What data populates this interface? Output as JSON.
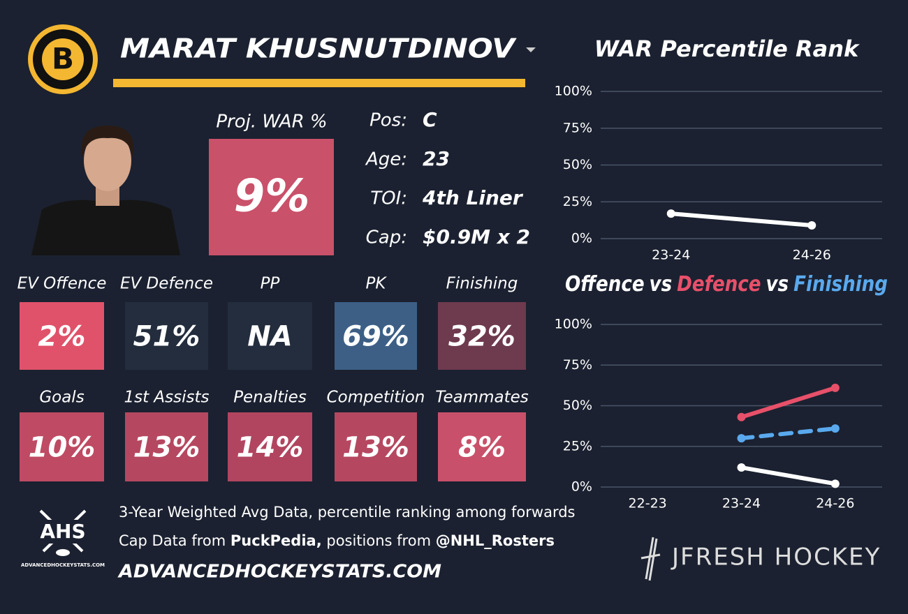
{
  "header": {
    "logo_letter": "B",
    "player_name": "MARAT KHUSNUTDINOV"
  },
  "projection": {
    "label": "Proj. WAR %",
    "value": "9%",
    "color": "#c9516a"
  },
  "info": [
    {
      "label": "Pos:",
      "value": "C"
    },
    {
      "label": "Age:",
      "value": "23"
    },
    {
      "label": "TOI:",
      "value": "4th Liner"
    },
    {
      "label": "Cap:",
      "value": "$0.9M x 2"
    }
  ],
  "tiles": [
    [
      {
        "label": "EV Offence",
        "value": "2%",
        "color": "#e0526a"
      },
      {
        "label": "EV Defence",
        "value": "51%",
        "color": "#232d3d"
      },
      {
        "label": "PP",
        "value": "NA",
        "color": "#232d3d"
      },
      {
        "label": "PK",
        "value": "69%",
        "color": "#3d5f86"
      },
      {
        "label": "Finishing",
        "value": "32%",
        "color": "#6e3a4e"
      }
    ],
    [
      {
        "label": "Goals",
        "value": "10%",
        "color": "#bf4a63"
      },
      {
        "label": "1st Assists",
        "value": "13%",
        "color": "#b54860"
      },
      {
        "label": "Penalties",
        "value": "14%",
        "color": "#b14560"
      },
      {
        "label": "Competition",
        "value": "13%",
        "color": "#b54860"
      },
      {
        "label": "Teammates",
        "value": "8%",
        "color": "#c9506a"
      }
    ]
  ],
  "footer": {
    "note": "3-Year Weighted Avg Data, percentile ranking among forwards",
    "credits": [
      {
        "text": "Cap Data from ",
        "bold": false
      },
      {
        "text": "PuckPedia,",
        "bold": true
      },
      {
        "text": " positions from ",
        "bold": false
      },
      {
        "text": "@NHL_Rosters",
        "bold": true
      }
    ],
    "website": "ADVANCEDHOCKEYSTATS.COM",
    "ahs_logo": "AHS",
    "ahs_logo_caption": "ADVANCEDHOCKEYSTATS.COM",
    "brand": "JFRESH HOCKEY"
  },
  "chart_data": [
    {
      "type": "line",
      "title": "WAR Percentile Rank",
      "categories": [
        "23-24",
        "24-26"
      ],
      "values": [
        17,
        9
      ],
      "color": "#ffffff",
      "ylim": [
        0,
        100
      ],
      "yticks": [
        {
          "value": 0,
          "label": "0%"
        },
        {
          "value": 25,
          "label": "25%"
        },
        {
          "value": 50,
          "label": "50%"
        },
        {
          "value": 75,
          "label": "75%"
        },
        {
          "value": 100,
          "label": "100%"
        }
      ],
      "grid": true
    },
    {
      "type": "line",
      "title_joiner": "vs",
      "categories": [
        "22-23",
        "23-24",
        "24-26"
      ],
      "series": [
        {
          "name": "Offence",
          "color": "#ffffff",
          "values": [
            null,
            12,
            2
          ]
        },
        {
          "name": "Defence",
          "color": "#e8506a",
          "values": [
            null,
            43,
            61
          ]
        },
        {
          "name": "Finishing",
          "color": "#5aa9ee",
          "values": [
            null,
            30,
            36
          ],
          "line_style": "dashed"
        }
      ],
      "ylim": [
        0,
        100
      ],
      "yticks": [
        {
          "value": 0,
          "label": "0%"
        },
        {
          "value": 25,
          "label": "25%"
        },
        {
          "value": 50,
          "label": "50%"
        },
        {
          "value": 75,
          "label": "75%"
        },
        {
          "value": 100,
          "label": "100%"
        }
      ],
      "grid": true
    }
  ]
}
